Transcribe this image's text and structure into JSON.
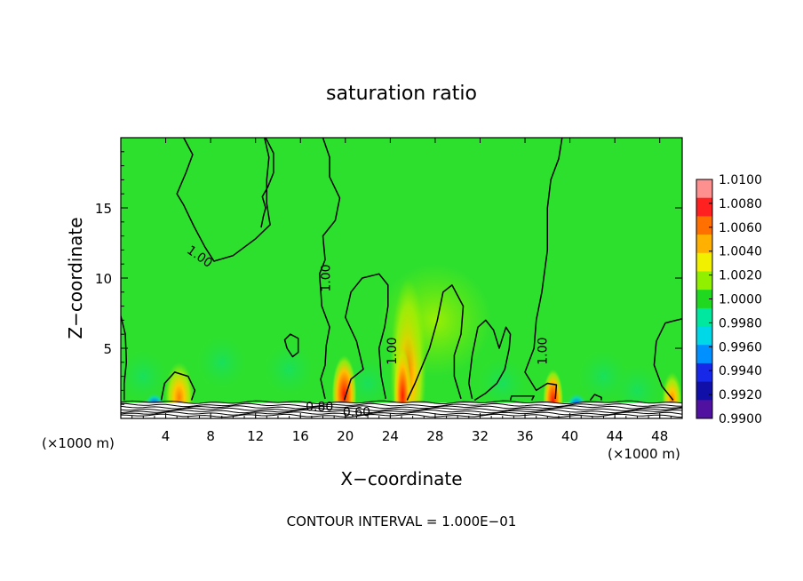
{
  "chart_data": {
    "type": "heatmap",
    "title": "saturation ratio",
    "xlabel": "X−coordinate",
    "ylabel": "Z−coordinate",
    "x_unit_left": "(×1000 m)",
    "x_unit_right": "(×1000 m)",
    "footer": "CONTOUR INTERVAL = 1.000E−01",
    "xlim": [
      0,
      50
    ],
    "ylim": [
      0,
      20
    ],
    "x_ticks": [
      "4",
      "8",
      "12",
      "16",
      "20",
      "24",
      "28",
      "32",
      "36",
      "40",
      "44",
      "48"
    ],
    "y_ticks": [
      "5",
      "10",
      "15"
    ],
    "colorbar": {
      "labels": [
        "1.0100",
        "1.0080",
        "1.0060",
        "1.0040",
        "1.0020",
        "1.0000",
        "0.9980",
        "0.9960",
        "0.9940",
        "0.9920",
        "0.9900"
      ],
      "colors": [
        "#ff9090",
        "#ff2020",
        "#ff7000",
        "#ffb000",
        "#f0f000",
        "#90f000",
        "#20d820",
        "#00e8a0",
        "#00d8e8",
        "#0090ff",
        "#1828e8",
        "#1010a8",
        "#5010a0"
      ]
    },
    "field_color": "#2ee02e",
    "contour_labels": [
      {
        "text": "1.00",
        "x": 7.0,
        "z": 11.5
      },
      {
        "text": "1.00",
        "x": 18.3,
        "z": 10.0
      },
      {
        "text": "1.00",
        "x": 24.2,
        "z": 4.8
      },
      {
        "text": "1.00",
        "x": 37.6,
        "z": 4.8
      },
      {
        "text": "0.80",
        "x": 17.7,
        "z": 0.8
      },
      {
        "text": "0.60",
        "x": 21.0,
        "z": 0.4
      }
    ],
    "contour_value": 1.0,
    "contours": [
      [
        [
          5.6,
          20
        ],
        [
          6.4,
          18.8
        ],
        [
          5.8,
          17.5
        ],
        [
          5.0,
          16
        ],
        [
          5.6,
          15.2
        ],
        [
          6.5,
          13.7
        ],
        [
          7.5,
          12.2
        ],
        [
          8.3,
          11.2
        ],
        [
          10,
          11.6
        ],
        [
          12,
          12.8
        ],
        [
          13.3,
          13.8
        ],
        [
          13.0,
          15.3
        ],
        [
          13.0,
          17
        ],
        [
          13.2,
          18.6
        ],
        [
          12.8,
          20
        ]
      ],
      [
        [
          12.9,
          20
        ],
        [
          13.6,
          18.9
        ],
        [
          13.6,
          17.5
        ],
        [
          13.1,
          16.5
        ],
        [
          12.6,
          15.8
        ],
        [
          12.9,
          15.0
        ],
        [
          12.7,
          14.4
        ],
        [
          12.5,
          13.6
        ]
      ],
      [
        [
          18.0,
          20
        ],
        [
          18.6,
          18.6
        ],
        [
          18.6,
          17.2
        ],
        [
          19.5,
          15.7
        ],
        [
          19.1,
          14.1
        ],
        [
          18.0,
          13.0
        ],
        [
          18.2,
          11.3
        ],
        [
          17.7,
          10.3
        ],
        [
          17.9,
          8.0
        ],
        [
          18.6,
          6.5
        ],
        [
          18.3,
          5.2
        ],
        [
          18.2,
          3.8
        ],
        [
          17.8,
          2.8
        ],
        [
          18.2,
          1.4
        ]
      ],
      [
        [
          19.9,
          1.3
        ],
        [
          20.5,
          2.8
        ],
        [
          21.6,
          3.5
        ],
        [
          21.0,
          5.5
        ],
        [
          20.0,
          7.2
        ],
        [
          20.5,
          9.0
        ],
        [
          21.5,
          10.0
        ],
        [
          23.0,
          10.3
        ],
        [
          23.8,
          9.5
        ],
        [
          23.8,
          8.0
        ],
        [
          23.5,
          6.5
        ],
        [
          23.0,
          5.0
        ],
        [
          23.2,
          3.0
        ],
        [
          23.6,
          1.4
        ]
      ],
      [
        [
          25.5,
          1.3
        ],
        [
          26.2,
          2.5
        ],
        [
          27.5,
          5.0
        ],
        [
          28.2,
          7.0
        ],
        [
          28.7,
          9.0
        ],
        [
          29.5,
          9.5
        ],
        [
          30.5,
          8.0
        ],
        [
          30.3,
          6.0
        ],
        [
          29.7,
          4.5
        ],
        [
          29.7,
          3.0
        ],
        [
          30.3,
          1.4
        ]
      ],
      [
        [
          31.5,
          1.3
        ],
        [
          32.5,
          1.8
        ],
        [
          33.5,
          2.5
        ],
        [
          34.2,
          3.5
        ],
        [
          34.6,
          5.0
        ],
        [
          34.7,
          6.0
        ],
        [
          34.3,
          6.5
        ],
        [
          33.7,
          5.0
        ],
        [
          33.2,
          6.3
        ],
        [
          32.5,
          7.0
        ],
        [
          31.8,
          6.5
        ],
        [
          31.3,
          4.5
        ],
        [
          31.0,
          2.5
        ],
        [
          31.3,
          1.4
        ]
      ],
      [
        [
          39.3,
          20
        ],
        [
          39.0,
          18.5
        ],
        [
          38.3,
          17.0
        ],
        [
          38.0,
          15.0
        ],
        [
          38.0,
          12.0
        ],
        [
          37.5,
          9.0
        ],
        [
          37.0,
          7.0
        ],
        [
          36.8,
          5.0
        ],
        [
          36.0,
          3.3
        ],
        [
          37.0,
          2.0
        ],
        [
          38.0,
          2.5
        ],
        [
          38.8,
          2.4
        ],
        [
          38.7,
          1.4
        ]
      ],
      [
        [
          49.2,
          1.3
        ],
        [
          48.2,
          2.3
        ],
        [
          47.5,
          3.8
        ],
        [
          47.7,
          5.5
        ],
        [
          48.5,
          6.8
        ],
        [
          49.5,
          7.0
        ],
        [
          50,
          7.1
        ]
      ],
      [
        [
          0,
          7.3
        ],
        [
          0.4,
          6.0
        ],
        [
          0.5,
          4.0
        ],
        [
          0.3,
          2.5
        ],
        [
          0.3,
          1.3
        ]
      ],
      [
        [
          3.6,
          1.3
        ],
        [
          3.9,
          2.5
        ],
        [
          4.8,
          3.3
        ],
        [
          6.0,
          3.0
        ],
        [
          6.6,
          2.0
        ],
        [
          6.3,
          1.3
        ]
      ],
      [
        [
          14.8,
          5.0
        ],
        [
          14.6,
          5.6
        ],
        [
          15.1,
          6.0
        ],
        [
          15.8,
          5.7
        ],
        [
          15.8,
          4.7
        ],
        [
          15.3,
          4.4
        ],
        [
          14.8,
          5.0
        ]
      ],
      [
        [
          34.7,
          1.3
        ],
        [
          34.8,
          1.6
        ],
        [
          36.8,
          1.6
        ],
        [
          36.6,
          1.3
        ]
      ],
      [
        [
          41.8,
          1.3
        ],
        [
          42.2,
          1.7
        ],
        [
          42.8,
          1.5
        ],
        [
          42.8,
          1.3
        ]
      ]
    ],
    "hotspots": [
      {
        "x": 3.0,
        "z": 0.9,
        "w": 0.9,
        "h": 0.9,
        "value": 0.992
      },
      {
        "x": 5.2,
        "z": 1.5,
        "w": 1.3,
        "h": 2.5,
        "value": 1.004
      },
      {
        "x": 19.9,
        "z": 1.7,
        "w": 1.1,
        "h": 2.8,
        "value": 1.006
      },
      {
        "x": 25.6,
        "z": 3.5,
        "w": 1.6,
        "h": 6.5,
        "value": 1.004
      },
      {
        "x": 25.1,
        "z": 1.6,
        "w": 0.8,
        "h": 3.5,
        "value": 1.006
      },
      {
        "x": 38.5,
        "z": 1.3,
        "w": 0.9,
        "h": 2.2,
        "value": 1.006
      },
      {
        "x": 40.6,
        "z": 0.8,
        "w": 0.9,
        "h": 1.0,
        "value": 0.994
      },
      {
        "x": 49.1,
        "z": 1.3,
        "w": 0.9,
        "h": 2.0,
        "value": 1.004
      },
      {
        "x": 28.0,
        "z": 7.0,
        "w": 5.0,
        "h": 4.0,
        "value": 1.002
      }
    ]
  }
}
